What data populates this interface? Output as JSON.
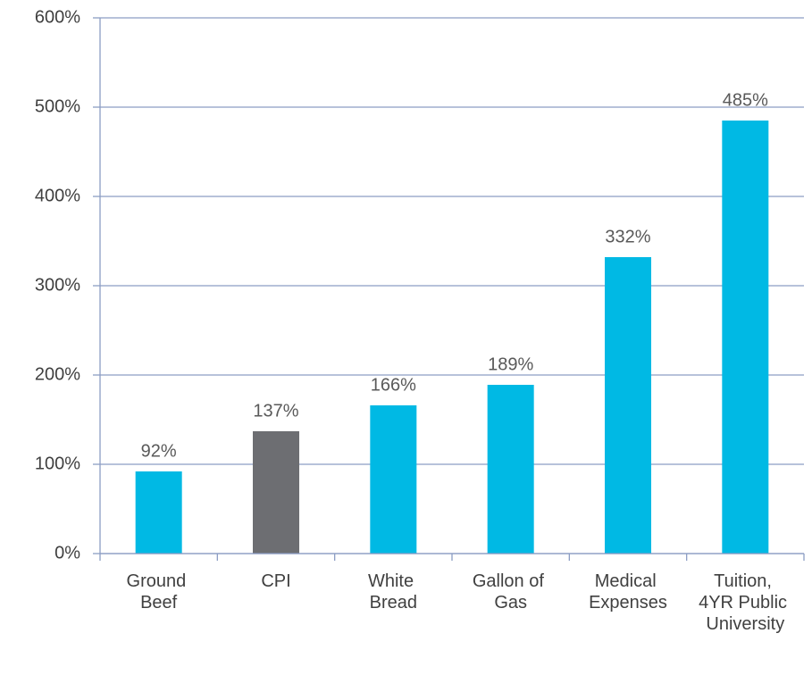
{
  "chart_data": {
    "type": "bar",
    "categories": [
      "Ground Beef",
      "CPI",
      "White Bread",
      "Gallon of Gas",
      "Medical Expenses",
      "Tuition, 4YR Public University"
    ],
    "values": [
      92,
      137,
      166,
      189,
      332,
      485
    ],
    "value_labels": [
      "92%",
      "137%",
      "166%",
      "189%",
      "332%",
      "485%"
    ],
    "colors": [
      "#00b9e4",
      "#6d6e72",
      "#00b9e4",
      "#00b9e4",
      "#00b9e4",
      "#00b9e4"
    ],
    "ylim": [
      0,
      600
    ],
    "yticks": [
      {
        "value": 0,
        "label": "0%"
      },
      {
        "value": 100,
        "label": "100%"
      },
      {
        "value": 200,
        "label": "200%"
      },
      {
        "value": 300,
        "label": "300%"
      },
      {
        "value": 400,
        "label": "400%"
      },
      {
        "value": 500,
        "label": "500%"
      },
      {
        "value": 600,
        "label": "600%"
      }
    ],
    "grid": true
  }
}
